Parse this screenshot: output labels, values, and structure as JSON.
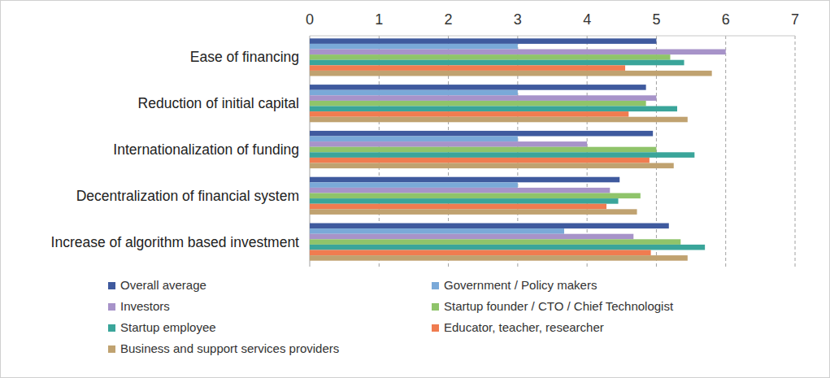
{
  "chart_data": {
    "type": "bar",
    "orientation": "horizontal",
    "categories": [
      "Ease of financing",
      "Reduction of initial capital",
      "Internationalization of funding",
      "Decentralization of financial system",
      "Increase of algorithm based investment"
    ],
    "series": [
      {
        "name": "Overall average",
        "color": "#3f5a9e",
        "values": [
          5.0,
          4.85,
          4.95,
          4.47,
          5.18
        ]
      },
      {
        "name": "Government / Policy makers",
        "color": "#7aa9d8",
        "values": [
          3.0,
          3.0,
          3.0,
          3.0,
          3.67
        ]
      },
      {
        "name": "Investors",
        "color": "#a793c9",
        "values": [
          6.0,
          5.0,
          4.0,
          4.33,
          4.67
        ]
      },
      {
        "name": "Startup founder / CTO / Chief Technologist",
        "color": "#8fc46a",
        "values": [
          5.2,
          4.85,
          5.0,
          4.77,
          5.35
        ]
      },
      {
        "name": "Startup employee",
        "color": "#3aa59a",
        "values": [
          5.4,
          5.3,
          5.55,
          4.45,
          5.7
        ]
      },
      {
        "name": "Educator, teacher, researcher",
        "color": "#f07c50",
        "values": [
          4.55,
          4.6,
          4.9,
          4.28,
          4.92
        ]
      },
      {
        "name": "Business and support services providers",
        "color": "#c0a270",
        "values": [
          5.8,
          5.45,
          5.25,
          4.72,
          5.45
        ]
      }
    ],
    "xlim": [
      0,
      7
    ],
    "xticks": [
      0,
      1,
      2,
      3,
      4,
      5,
      6,
      7
    ],
    "grid": true,
    "legend": "bottom"
  }
}
